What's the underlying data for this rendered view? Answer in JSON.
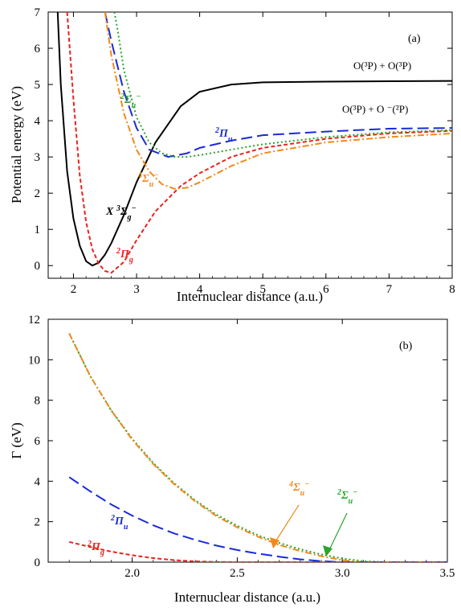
{
  "chart_data": [
    {
      "type": "line",
      "panel_label": "(a)",
      "xlabel": "Internuclear distance (a.u.)",
      "ylabel": "Potential energy (eV)",
      "xlim": [
        1.6,
        8.0
      ],
      "ylim": [
        -0.35,
        7.0
      ],
      "xticks": [
        2,
        3,
        4,
        5,
        6,
        7,
        8
      ],
      "yticks": [
        0,
        1,
        2,
        3,
        4,
        5,
        6,
        7
      ],
      "asymptote_labels": [
        "O(³P) + O(³P)",
        "O(³P) + O ⁻(²P)"
      ],
      "series": [
        {
          "label": "X ³Σg⁻",
          "color": "#000000",
          "dash": "solid",
          "x": [
            1.75,
            1.8,
            1.9,
            2.0,
            2.1,
            2.2,
            2.3,
            2.4,
            2.5,
            2.6,
            2.8,
            3.0,
            3.3,
            3.7,
            4.0,
            4.5,
            5.0,
            6.0,
            7.0,
            8.0
          ],
          "y": [
            7.0,
            5.0,
            2.6,
            1.3,
            0.55,
            0.12,
            0.0,
            0.08,
            0.3,
            0.62,
            1.4,
            2.3,
            3.4,
            4.4,
            4.8,
            5.0,
            5.06,
            5.08,
            5.09,
            5.1
          ]
        },
        {
          "label": "²Πg",
          "color": "#e8231f",
          "dash": "5,3",
          "x": [
            1.9,
            2.0,
            2.1,
            2.2,
            2.3,
            2.4,
            2.5,
            2.6,
            2.8,
            3.0,
            3.3,
            3.7,
            4.0,
            4.5,
            5.0,
            6.0,
            7.0,
            8.0
          ],
          "y": [
            7.0,
            4.6,
            2.5,
            1.2,
            0.45,
            0.05,
            -0.15,
            -0.2,
            0.1,
            0.7,
            1.5,
            2.2,
            2.55,
            3.0,
            3.25,
            3.5,
            3.65,
            3.72
          ]
        },
        {
          "label": "²Πu",
          "color": "#1a2bd6",
          "dash": "14,6",
          "x": [
            2.5,
            2.6,
            2.8,
            3.0,
            3.2,
            3.5,
            3.8,
            4.0,
            4.5,
            5.0,
            6.0,
            7.0,
            8.0
          ],
          "y": [
            7.0,
            6.2,
            4.8,
            3.8,
            3.2,
            3.0,
            3.1,
            3.25,
            3.45,
            3.6,
            3.7,
            3.78,
            3.8
          ]
        },
        {
          "label": "²Σu⁻",
          "color": "#2aa52a",
          "dash": "2,3",
          "x": [
            2.65,
            2.7,
            2.8,
            3.0,
            3.2,
            3.4,
            3.6,
            3.8,
            4.0,
            4.5,
            5.0,
            6.0,
            7.0,
            8.0
          ],
          "y": [
            7.0,
            6.5,
            5.4,
            4.1,
            3.4,
            3.1,
            3.0,
            3.0,
            3.05,
            3.2,
            3.35,
            3.55,
            3.68,
            3.74
          ]
        },
        {
          "label": "⁴Σu⁻",
          "color": "#f08a1c",
          "dash": "8,3,2,3",
          "x": [
            2.5,
            2.6,
            2.8,
            3.0,
            3.2,
            3.4,
            3.6,
            3.8,
            4.0,
            4.5,
            5.0,
            6.0,
            7.0,
            8.0
          ],
          "y": [
            7.0,
            5.8,
            4.2,
            3.2,
            2.6,
            2.25,
            2.12,
            2.15,
            2.3,
            2.75,
            3.1,
            3.4,
            3.55,
            3.65
          ]
        }
      ]
    },
    {
      "type": "line",
      "panel_label": "(b)",
      "xlabel": "Internuclear distance (a.u.)",
      "ylabel": "Γ (eV)",
      "xlim": [
        1.6,
        3.5
      ],
      "ylim": [
        0,
        12
      ],
      "xticks": [
        2.0,
        2.5,
        3.0,
        3.5
      ],
      "yticks": [
        0,
        2,
        4,
        6,
        8,
        10,
        12
      ],
      "series": [
        {
          "label": "²Σu⁻",
          "color": "#2aa52a",
          "dash": "2,3",
          "x": [
            1.7,
            1.8,
            1.9,
            2.0,
            2.1,
            2.2,
            2.3,
            2.4,
            2.5,
            2.6,
            2.7,
            2.8,
            2.9,
            3.0,
            3.1,
            3.2,
            3.3,
            3.5
          ],
          "y": [
            11.3,
            9.2,
            7.5,
            6.1,
            4.9,
            3.9,
            3.05,
            2.35,
            1.8,
            1.32,
            0.95,
            0.64,
            0.38,
            0.18,
            0.05,
            0.0,
            0.0,
            0.0
          ]
        },
        {
          "label": "⁴Σu⁻",
          "color": "#f08a1c",
          "dash": "8,3,2,3",
          "x": [
            1.7,
            1.8,
            1.9,
            2.0,
            2.1,
            2.2,
            2.3,
            2.4,
            2.5,
            2.6,
            2.7,
            2.8,
            2.9,
            3.0,
            3.1,
            3.5
          ],
          "y": [
            11.3,
            9.2,
            7.5,
            6.05,
            4.85,
            3.85,
            3.0,
            2.28,
            1.72,
            1.25,
            0.85,
            0.55,
            0.3,
            0.1,
            0.0,
            0.0
          ]
        },
        {
          "label": "²Πu",
          "color": "#1a2bd6",
          "dash": "14,6",
          "x": [
            1.7,
            1.8,
            1.9,
            2.0,
            2.1,
            2.2,
            2.3,
            2.4,
            2.5,
            2.6,
            2.7,
            2.8,
            2.9,
            3.0,
            3.1,
            3.5
          ],
          "y": [
            4.2,
            3.5,
            2.85,
            2.3,
            1.82,
            1.42,
            1.1,
            0.82,
            0.6,
            0.42,
            0.27,
            0.14,
            0.05,
            0.0,
            0.0,
            0.0
          ]
        },
        {
          "label": "²Πg",
          "color": "#e8231f",
          "dash": "5,3",
          "x": [
            1.7,
            1.8,
            1.9,
            2.0,
            2.1,
            2.2,
            2.3,
            2.4,
            2.5,
            2.6,
            2.7,
            3.5
          ],
          "y": [
            1.0,
            0.75,
            0.52,
            0.34,
            0.2,
            0.1,
            0.04,
            0.01,
            0.0,
            0.0,
            0.0,
            0.0
          ]
        }
      ]
    }
  ]
}
